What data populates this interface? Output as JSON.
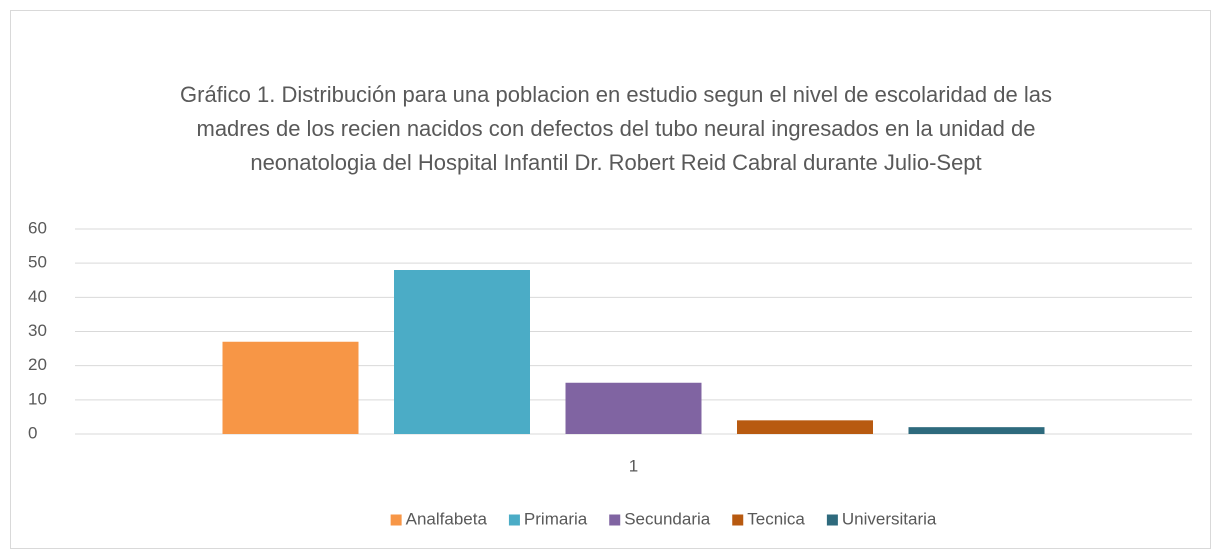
{
  "chart_data": {
    "type": "bar",
    "title": "Gráfico 1. Distribución para una poblacion en estudio segun el nivel de escolaridad de las madres de los recien nacidos con defectos del tubo neural ingresados en la unidad de neonatologia del Hospital Infantil Dr. Robert Reid Cabral durante Julio-Sept",
    "categories": [
      "1"
    ],
    "series": [
      {
        "name": "Analfabeta",
        "color": "#f79646",
        "values": [
          27
        ]
      },
      {
        "name": "Primaria",
        "color": "#4bacc6",
        "values": [
          48
        ]
      },
      {
        "name": "Secundaria",
        "color": "#8064a2",
        "values": [
          15
        ]
      },
      {
        "name": "Tecnica",
        "color": "#b85a10",
        "values": [
          4
        ]
      },
      {
        "name": "Universitaria",
        "color": "#2e6a7d",
        "values": [
          2
        ]
      }
    ],
    "ylim": [
      0,
      60
    ],
    "yticks": [
      0,
      10,
      20,
      30,
      40,
      50,
      60
    ],
    "grid": true,
    "legend": "bottom"
  }
}
